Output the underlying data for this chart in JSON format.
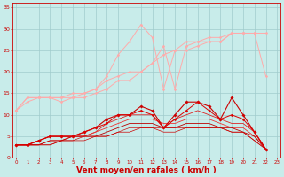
{
  "background_color": "#c8ecea",
  "grid_color": "#a0cccc",
  "xlabel": "Vent moyen/en rafales ( km/h )",
  "xlabel_color": "#cc0000",
  "xlabel_fontsize": 6.5,
  "ylabel_ticks": [
    0,
    5,
    10,
    15,
    20,
    25,
    30,
    35
  ],
  "xticks": [
    0,
    1,
    2,
    3,
    4,
    5,
    6,
    7,
    8,
    9,
    10,
    11,
    12,
    13,
    14,
    15,
    16,
    17,
    18,
    19,
    20,
    21,
    22,
    23
  ],
  "xlim": [
    -0.3,
    23.3
  ],
  "ylim": [
    0,
    36
  ],
  "series": [
    {
      "x": [
        0,
        1,
        2,
        3,
        4,
        5,
        6,
        7,
        8,
        9,
        10,
        11,
        12,
        13,
        14,
        15,
        16,
        17,
        18,
        19,
        20,
        21,
        22
      ],
      "y": [
        11,
        14,
        14,
        14,
        14,
        15,
        15,
        16,
        18,
        19,
        20,
        20,
        22,
        24,
        25,
        27,
        27,
        28,
        28,
        29,
        29,
        29,
        29
      ],
      "color": "#ffaaaa",
      "lw": 0.7,
      "marker": "D",
      "ms": 1.5
    },
    {
      "x": [
        0,
        1,
        2,
        3,
        4,
        5,
        6,
        7,
        8,
        9,
        10,
        11,
        12,
        13,
        14,
        15,
        16,
        17,
        18,
        19,
        20,
        21,
        22
      ],
      "y": [
        11,
        13,
        14,
        14,
        13,
        14,
        14,
        15,
        16,
        18,
        18,
        20,
        22,
        26,
        16,
        26,
        27,
        27,
        27,
        29,
        29,
        29,
        19
      ],
      "color": "#ffaaaa",
      "lw": 0.7,
      "marker": "D",
      "ms": 1.5
    },
    {
      "x": [
        0,
        1,
        2,
        3,
        4,
        5,
        6,
        7,
        8,
        9,
        10,
        11,
        12,
        13,
        14,
        15,
        16,
        17,
        18,
        19,
        20,
        21
      ],
      "y": [
        11,
        14,
        14,
        14,
        14,
        14,
        15,
        16,
        19,
        24,
        27,
        31,
        28,
        16,
        25,
        25,
        26,
        27,
        27,
        29,
        29,
        29
      ],
      "color": "#ffaaaa",
      "lw": 0.7,
      "marker": "D",
      "ms": 1.5
    },
    {
      "x": [
        0,
        1,
        2,
        3,
        4,
        5,
        6,
        7,
        8,
        9,
        10,
        11,
        12,
        13,
        14,
        15,
        16,
        17,
        18,
        19,
        20,
        21,
        22
      ],
      "y": [
        3,
        3,
        4,
        5,
        5,
        5,
        6,
        7,
        9,
        10,
        10,
        12,
        11,
        7,
        10,
        13,
        13,
        12,
        9,
        14,
        10,
        6,
        2
      ],
      "color": "#cc0000",
      "lw": 0.8,
      "marker": "D",
      "ms": 1.8
    },
    {
      "x": [
        0,
        1,
        2,
        3,
        4,
        5,
        6,
        7,
        8,
        9,
        10,
        11,
        12,
        13,
        14,
        15,
        16,
        17,
        18,
        19,
        20,
        21,
        22
      ],
      "y": [
        3,
        3,
        4,
        5,
        5,
        5,
        6,
        7,
        8,
        10,
        10,
        11,
        10,
        7,
        9,
        11,
        13,
        11,
        9,
        10,
        9,
        6,
        2
      ],
      "color": "#dd0000",
      "lw": 0.7,
      "marker": "D",
      "ms": 1.5
    },
    {
      "x": [
        0,
        1,
        2,
        3,
        4,
        5,
        6,
        7,
        8,
        9,
        10,
        11,
        12,
        13,
        14,
        15,
        16,
        17,
        18,
        19,
        20,
        21,
        22
      ],
      "y": [
        3,
        3,
        4,
        5,
        5,
        5,
        5,
        6,
        8,
        9,
        10,
        10,
        10,
        7,
        9,
        10,
        11,
        10,
        9,
        8,
        8,
        6,
        2
      ],
      "color": "#dd2222",
      "lw": 0.6,
      "marker": null,
      "ms": 0
    },
    {
      "x": [
        0,
        1,
        2,
        3,
        4,
        5,
        6,
        7,
        8,
        9,
        10,
        11,
        12,
        13,
        14,
        15,
        16,
        17,
        18,
        19,
        20,
        21,
        22
      ],
      "y": [
        3,
        3,
        3,
        4,
        4,
        5,
        5,
        6,
        7,
        8,
        9,
        9,
        9,
        8,
        8,
        9,
        9,
        9,
        8,
        7,
        7,
        5,
        2
      ],
      "color": "#ee3333",
      "lw": 0.6,
      "marker": null,
      "ms": 0
    },
    {
      "x": [
        0,
        1,
        2,
        3,
        4,
        5,
        6,
        7,
        8,
        9,
        10,
        11,
        12,
        13,
        14,
        15,
        16,
        17,
        18,
        19,
        20,
        21,
        22
      ],
      "y": [
        3,
        3,
        3,
        4,
        4,
        5,
        5,
        5,
        6,
        7,
        8,
        8,
        8,
        7,
        7,
        8,
        8,
        8,
        7,
        7,
        6,
        5,
        2
      ],
      "color": "#bb0000",
      "lw": 0.6,
      "marker": null,
      "ms": 0
    },
    {
      "x": [
        0,
        1,
        2,
        3,
        4,
        5,
        6,
        7,
        8,
        9,
        10,
        11,
        12,
        13,
        14,
        15,
        16,
        17,
        18,
        19,
        20,
        21,
        22
      ],
      "y": [
        3,
        3,
        3,
        3,
        4,
        4,
        5,
        5,
        5,
        6,
        7,
        7,
        7,
        7,
        7,
        7,
        7,
        7,
        7,
        6,
        6,
        4,
        2
      ],
      "color": "#cc1111",
      "lw": 0.5,
      "marker": null,
      "ms": 0
    },
    {
      "x": [
        0,
        1,
        2,
        3,
        4,
        5,
        6,
        7,
        8,
        9,
        10,
        11,
        12,
        13,
        14,
        15,
        16,
        17,
        18,
        19,
        20,
        21,
        22
      ],
      "y": [
        3,
        3,
        3,
        3,
        4,
        4,
        4,
        5,
        5,
        6,
        6,
        7,
        7,
        6,
        6,
        7,
        7,
        7,
        7,
        6,
        6,
        4,
        2
      ],
      "color": "#cc0000",
      "lw": 0.5,
      "marker": null,
      "ms": 0
    }
  ]
}
